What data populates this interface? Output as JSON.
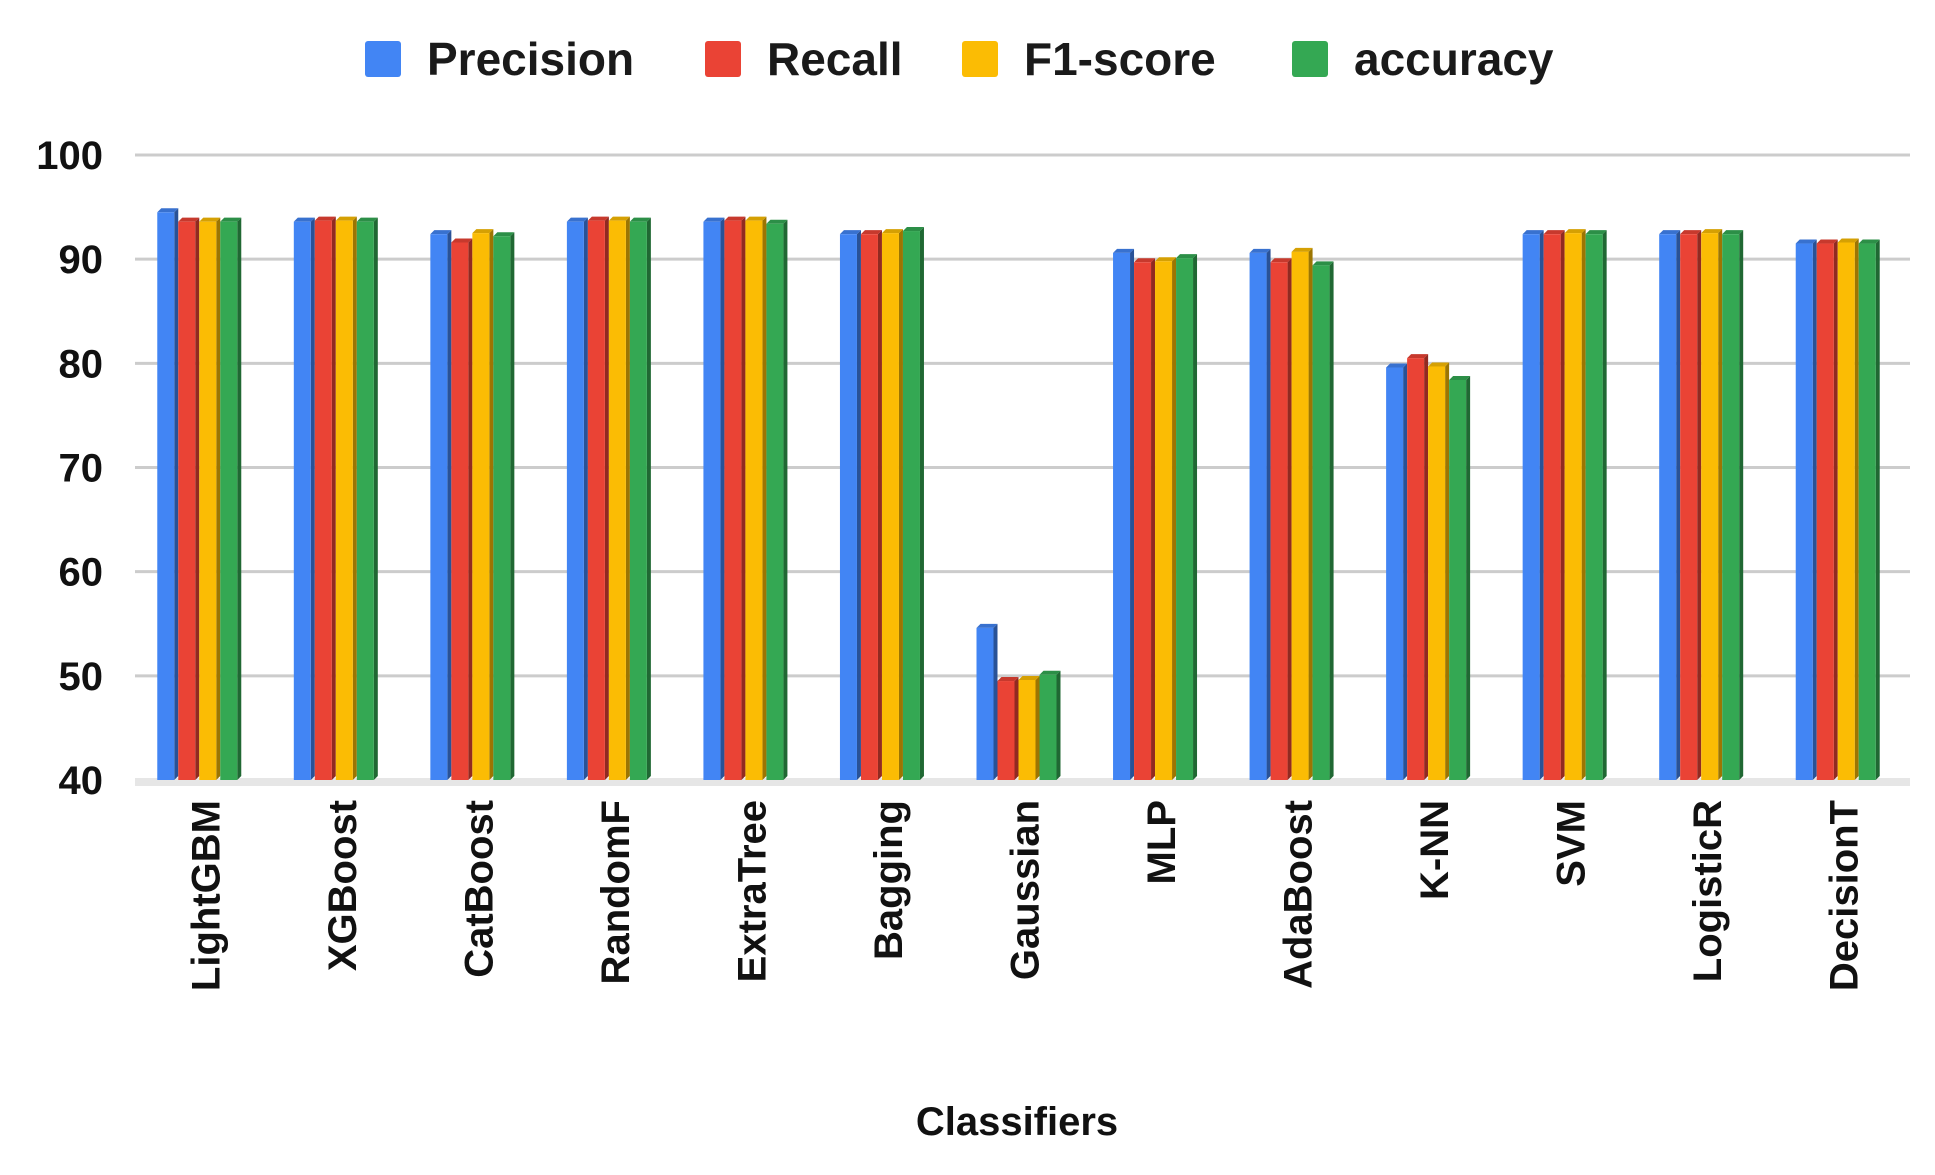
{
  "chart_data": {
    "type": "bar",
    "title": "",
    "xlabel": "Classifiers",
    "ylabel": "",
    "ylim": [
      40,
      100
    ],
    "yticks": [
      40,
      50,
      60,
      70,
      80,
      90,
      100
    ],
    "grid": true,
    "legend_position": "top",
    "categories": [
      "LightGBM",
      "XGBoost",
      "CatBoost",
      "RandomF",
      "ExtraTree",
      "Bagging",
      "Gaussian",
      "MLP",
      "AdaBoost",
      "K-NN",
      "SVM",
      "LogisticR",
      "DecisionT"
    ],
    "series": [
      {
        "name": "Precision",
        "color": "#4285F4",
        "values": [
          94.5,
          93.6,
          92.4,
          93.6,
          93.6,
          92.4,
          54.6,
          90.6,
          90.6,
          79.6,
          92.4,
          92.4,
          91.5
        ]
      },
      {
        "name": "Recall",
        "color": "#EA4335",
        "values": [
          93.6,
          93.7,
          91.6,
          93.7,
          93.7,
          92.4,
          49.5,
          89.7,
          89.7,
          80.5,
          92.4,
          92.4,
          91.5
        ]
      },
      {
        "name": "F1-score",
        "color": "#FBBC04",
        "values": [
          93.6,
          93.7,
          92.5,
          93.7,
          93.7,
          92.5,
          49.6,
          89.8,
          90.7,
          79.7,
          92.5,
          92.5,
          91.6
        ]
      },
      {
        "name": "accuracy",
        "color": "#34A853",
        "values": [
          93.6,
          93.6,
          92.2,
          93.6,
          93.4,
          92.7,
          50.1,
          90.1,
          89.4,
          78.4,
          92.4,
          92.4,
          91.5
        ]
      }
    ]
  }
}
